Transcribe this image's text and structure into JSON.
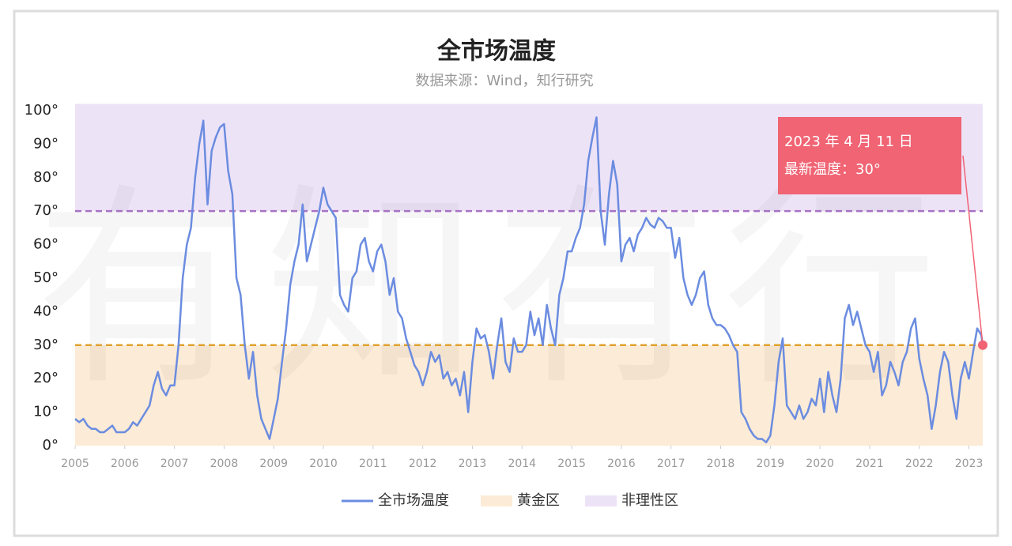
{
  "chart_data": {
    "type": "line",
    "title": "全市场温度",
    "subtitle": "数据来源：Wind，知行研究",
    "watermark": "有知有行",
    "annotations": [
      "2023 年 4 月 11 日",
      "最新温度：30°"
    ],
    "xlim": [
      2005,
      2023.278
    ],
    "xticks": [
      2005,
      2006,
      2007,
      2008,
      2009,
      2010,
      2011,
      2012,
      2013,
      2014,
      2015,
      2016,
      2017,
      2018,
      2019,
      2020,
      2021,
      2022,
      2023
    ],
    "ylim": [
      0,
      102
    ],
    "yticks": [
      {
        "value": 0,
        "label": "0°"
      },
      {
        "value": 10,
        "label": "10°"
      },
      {
        "value": 20,
        "label": "20°"
      },
      {
        "value": 30,
        "label": "30°"
      },
      {
        "value": 40,
        "label": "40°"
      },
      {
        "value": 50,
        "label": "50°"
      },
      {
        "value": 60,
        "label": "60°"
      },
      {
        "value": 70,
        "label": "70°"
      },
      {
        "value": 80,
        "label": "80°"
      },
      {
        "value": 90,
        "label": "90°"
      },
      {
        "value": 100,
        "label": "100°"
      }
    ],
    "zones": [
      {
        "name": "黄金区",
        "range": [
          0,
          30
        ],
        "color": "#fcebd6",
        "line_color": "#e0a22e"
      },
      {
        "name": "非理性区",
        "range": [
          70,
          102
        ],
        "color": "#ede3f7",
        "line_color": "#a673c4"
      }
    ],
    "x": [
      2005,
      2005.083,
      2005.167,
      2005.25,
      2005.333,
      2005.417,
      2005.5,
      2005.583,
      2005.667,
      2005.75,
      2005.833,
      2005.917,
      2006,
      2006.083,
      2006.167,
      2006.25,
      2006.333,
      2006.417,
      2006.5,
      2006.583,
      2006.667,
      2006.75,
      2006.833,
      2006.917,
      2007,
      2007.083,
      2007.167,
      2007.25,
      2007.333,
      2007.417,
      2007.5,
      2007.583,
      2007.667,
      2007.75,
      2007.833,
      2007.917,
      2008,
      2008.083,
      2008.167,
      2008.25,
      2008.333,
      2008.417,
      2008.5,
      2008.583,
      2008.667,
      2008.75,
      2008.833,
      2008.917,
      2009,
      2009.083,
      2009.167,
      2009.25,
      2009.333,
      2009.417,
      2009.5,
      2009.583,
      2009.667,
      2009.75,
      2009.833,
      2009.917,
      2010,
      2010.083,
      2010.167,
      2010.25,
      2010.333,
      2010.417,
      2010.5,
      2010.583,
      2010.667,
      2010.75,
      2010.833,
      2010.917,
      2011,
      2011.083,
      2011.167,
      2011.25,
      2011.333,
      2011.417,
      2011.5,
      2011.583,
      2011.667,
      2011.75,
      2011.833,
      2011.917,
      2012,
      2012.083,
      2012.167,
      2012.25,
      2012.333,
      2012.417,
      2012.5,
      2012.583,
      2012.667,
      2012.75,
      2012.833,
      2012.917,
      2013,
      2013.083,
      2013.167,
      2013.25,
      2013.333,
      2013.417,
      2013.5,
      2013.583,
      2013.667,
      2013.75,
      2013.833,
      2013.917,
      2014,
      2014.083,
      2014.167,
      2014.25,
      2014.333,
      2014.417,
      2014.5,
      2014.583,
      2014.667,
      2014.75,
      2014.833,
      2014.917,
      2015,
      2015.083,
      2015.167,
      2015.25,
      2015.333,
      2015.417,
      2015.5,
      2015.583,
      2015.667,
      2015.75,
      2015.833,
      2015.917,
      2016,
      2016.083,
      2016.167,
      2016.25,
      2016.333,
      2016.417,
      2016.5,
      2016.583,
      2016.667,
      2016.75,
      2016.833,
      2016.917,
      2017,
      2017.083,
      2017.167,
      2017.25,
      2017.333,
      2017.417,
      2017.5,
      2017.583,
      2017.667,
      2017.75,
      2017.833,
      2017.917,
      2018,
      2018.083,
      2018.167,
      2018.25,
      2018.333,
      2018.417,
      2018.5,
      2018.583,
      2018.667,
      2018.75,
      2018.833,
      2018.917,
      2019,
      2019.083,
      2019.167,
      2019.25,
      2019.333,
      2019.417,
      2019.5,
      2019.583,
      2019.667,
      2019.75,
      2019.833,
      2019.917,
      2020,
      2020.083,
      2020.167,
      2020.25,
      2020.333,
      2020.417,
      2020.5,
      2020.583,
      2020.667,
      2020.75,
      2020.833,
      2020.917,
      2021,
      2021.083,
      2021.167,
      2021.25,
      2021.333,
      2021.417,
      2021.5,
      2021.583,
      2021.667,
      2021.75,
      2021.833,
      2021.917,
      2022,
      2022.083,
      2022.167,
      2022.25,
      2022.333,
      2022.417,
      2022.5,
      2022.583,
      2022.667,
      2022.75,
      2022.833,
      2022.917,
      2023,
      2023.083,
      2023.167,
      2023.25,
      2023.278
    ],
    "series": [
      {
        "name": "全市场温度",
        "color": "#6b8ce0",
        "values": [
          8,
          7,
          8,
          6,
          5,
          5,
          4,
          4,
          5,
          6,
          4,
          4,
          4,
          5,
          7,
          6,
          8,
          10,
          12,
          18,
          22,
          17,
          15,
          18,
          18,
          30,
          50,
          60,
          65,
          80,
          90,
          97,
          72,
          88,
          92,
          95,
          96,
          82,
          75,
          50,
          45,
          30,
          20,
          28,
          15,
          8,
          5,
          2,
          8,
          14,
          25,
          35,
          48,
          55,
          60,
          72,
          55,
          60,
          65,
          70,
          77,
          72,
          70,
          68,
          45,
          42,
          40,
          50,
          52,
          60,
          62,
          55,
          52,
          58,
          60,
          55,
          45,
          50,
          40,
          38,
          32,
          28,
          24,
          22,
          18,
          22,
          28,
          25,
          27,
          20,
          22,
          18,
          20,
          15,
          22,
          10,
          25,
          35,
          32,
          33,
          28,
          20,
          30,
          38,
          25,
          22,
          32,
          28,
          28,
          30,
          40,
          33,
          38,
          30,
          42,
          35,
          30,
          45,
          50,
          58,
          58,
          62,
          65,
          72,
          85,
          92,
          98,
          70,
          60,
          75,
          85,
          78,
          55,
          60,
          62,
          58,
          63,
          65,
          68,
          66,
          65,
          68,
          67,
          65,
          65,
          56,
          62,
          50,
          45,
          42,
          45,
          50,
          52,
          42,
          38,
          36,
          36,
          35,
          33,
          30,
          28,
          10,
          8,
          5,
          3,
          2,
          2,
          1,
          3,
          12,
          25,
          32,
          12,
          10,
          8,
          12,
          8,
          10,
          14,
          12,
          20,
          10,
          22,
          15,
          10,
          20,
          38,
          42,
          36,
          40,
          35,
          30,
          28,
          22,
          28,
          15,
          18,
          25,
          22,
          18,
          25,
          28,
          35,
          38,
          26,
          20,
          15,
          5,
          12,
          22,
          28,
          25,
          15,
          8,
          20,
          25,
          20,
          28,
          35,
          33,
          30
        ]
      }
    ]
  }
}
